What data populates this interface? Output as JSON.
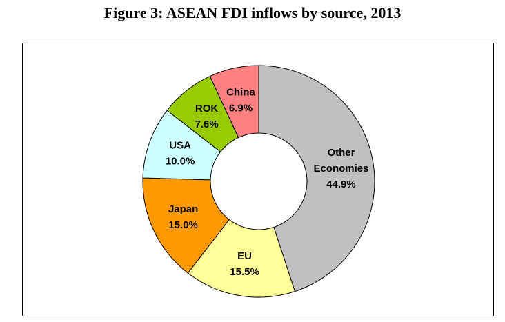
{
  "title": "Figure 3: ASEAN FDI inflows by source, 2013",
  "chart_data": {
    "type": "pie",
    "style": "donut",
    "start_angle_deg": 0,
    "direction": "clockwise",
    "slices": [
      {
        "name": "Other Economies",
        "label_lines": [
          "Other",
          "Economies",
          "44.9%"
        ],
        "value": 44.9,
        "color": "#c0c0c0"
      },
      {
        "name": "EU",
        "label_lines": [
          "EU",
          "15.5%"
        ],
        "value": 15.5,
        "color": "#ffff99"
      },
      {
        "name": "Japan",
        "label_lines": [
          "Japan",
          "15.0%"
        ],
        "value": 15.0,
        "color": "#ff9900"
      },
      {
        "name": "USA",
        "label_lines": [
          "USA",
          "10.0%"
        ],
        "value": 10.0,
        "color": "#ccffff"
      },
      {
        "name": "ROK",
        "label_lines": [
          "ROK",
          "7.6%"
        ],
        "value": 7.6,
        "color": "#99cc00"
      },
      {
        "name": "China",
        "label_lines": [
          "China",
          "6.9%"
        ],
        "value": 6.9,
        "color": "#ff8080"
      }
    ]
  }
}
